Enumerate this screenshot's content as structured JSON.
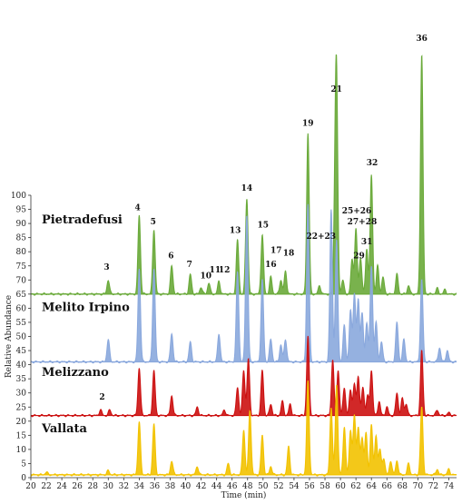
{
  "chart_data": {
    "type": "line",
    "title": "",
    "xlabel": "Time (min)",
    "ylabel": "Relative Abundance",
    "x_ticks": [
      20,
      22,
      24,
      26,
      28,
      30,
      32,
      34,
      36,
      38,
      40,
      42,
      44,
      46,
      48,
      50,
      52,
      54,
      56,
      58,
      60,
      62,
      64,
      66,
      68,
      70,
      72,
      74
    ],
    "y_ticks": [
      0,
      5,
      10,
      15,
      20,
      25,
      30,
      35,
      40,
      45,
      50,
      55,
      60,
      65,
      70,
      75,
      80,
      85,
      90,
      95,
      100
    ],
    "xlim": [
      20,
      75
    ],
    "ylim": [
      0,
      100
    ],
    "series": [
      {
        "name": "Pietradefusi",
        "color": "#6aaa3a",
        "baseline": 65,
        "peaks": [
          [
            30.0,
            70
          ],
          [
            34.0,
            93
          ],
          [
            35.9,
            88
          ],
          [
            38.2,
            75
          ],
          [
            40.6,
            72
          ],
          [
            42.0,
            67.5
          ],
          [
            43.0,
            69
          ],
          [
            44.3,
            69.5
          ],
          [
            46.7,
            84
          ],
          [
            47.9,
            99
          ],
          [
            49.9,
            86
          ],
          [
            51.0,
            71
          ],
          [
            52.3,
            70
          ],
          [
            52.9,
            73
          ],
          [
            55.8,
            122
          ],
          [
            57.3,
            68
          ],
          [
            59.3,
            95
          ],
          [
            59.5,
            134
          ],
          [
            60.3,
            70
          ],
          [
            61.5,
            77
          ],
          [
            62.0,
            88
          ],
          [
            62.6,
            78
          ],
          [
            63.4,
            81
          ],
          [
            64.0,
            107
          ],
          [
            64.8,
            75
          ],
          [
            65.5,
            71
          ],
          [
            67.3,
            72
          ],
          [
            68.8,
            68
          ],
          [
            70.5,
            150
          ],
          [
            72.5,
            67
          ],
          [
            73.5,
            66.5
          ]
        ]
      },
      {
        "name": "Melito Irpino",
        "color": "#8aa8dd",
        "baseline": 41,
        "peaks": [
          [
            30.0,
            49
          ],
          [
            34.0,
            74
          ],
          [
            35.9,
            74
          ],
          [
            38.2,
            51
          ],
          [
            40.6,
            48
          ],
          [
            44.3,
            51
          ],
          [
            46.7,
            73
          ],
          [
            47.9,
            93
          ],
          [
            49.9,
            70
          ],
          [
            51.0,
            49
          ],
          [
            52.3,
            47
          ],
          [
            52.9,
            49
          ],
          [
            55.8,
            97
          ],
          [
            58.8,
            95
          ],
          [
            59.5,
            84
          ],
          [
            60.5,
            54
          ],
          [
            61.3,
            59
          ],
          [
            61.8,
            65
          ],
          [
            62.3,
            63
          ],
          [
            62.8,
            58
          ],
          [
            63.4,
            55
          ],
          [
            64.0,
            75
          ],
          [
            64.6,
            55
          ],
          [
            65.3,
            48
          ],
          [
            67.3,
            55
          ],
          [
            68.2,
            49
          ],
          [
            70.5,
            70
          ],
          [
            72.8,
            46
          ],
          [
            73.8,
            45
          ]
        ]
      },
      {
        "name": "Melizzano",
        "color": "#cc1111",
        "baseline": 22,
        "peaks": [
          [
            29.0,
            24
          ],
          [
            30.2,
            24
          ],
          [
            34.0,
            39
          ],
          [
            35.9,
            38
          ],
          [
            38.2,
            29
          ],
          [
            41.5,
            25
          ],
          [
            45.0,
            24
          ],
          [
            46.7,
            32
          ],
          [
            47.5,
            38
          ],
          [
            48.1,
            42
          ],
          [
            49.9,
            38
          ],
          [
            51.0,
            26
          ],
          [
            52.5,
            27
          ],
          [
            53.5,
            26
          ],
          [
            55.8,
            50
          ],
          [
            59.0,
            42
          ],
          [
            59.7,
            38
          ],
          [
            60.5,
            32
          ],
          [
            61.3,
            31
          ],
          [
            61.8,
            33
          ],
          [
            62.3,
            36
          ],
          [
            62.9,
            32
          ],
          [
            63.5,
            29
          ],
          [
            64.0,
            38
          ],
          [
            65.0,
            27
          ],
          [
            66.0,
            25
          ],
          [
            67.3,
            30
          ],
          [
            68.0,
            28
          ],
          [
            68.5,
            26
          ],
          [
            70.5,
            45
          ],
          [
            72.5,
            24
          ],
          [
            74.0,
            23
          ]
        ]
      },
      {
        "name": "Vallata",
        "color": "#f2c200",
        "baseline": 1,
        "peaks": [
          [
            22.0,
            2
          ],
          [
            30.0,
            2.5
          ],
          [
            34.0,
            20
          ],
          [
            35.9,
            19
          ],
          [
            38.2,
            6
          ],
          [
            41.5,
            4
          ],
          [
            45.5,
            5
          ],
          [
            47.5,
            17
          ],
          [
            48.3,
            24
          ],
          [
            49.9,
            15
          ],
          [
            51.0,
            4
          ],
          [
            53.3,
            11
          ],
          [
            55.8,
            34
          ],
          [
            58.8,
            25
          ],
          [
            59.5,
            33
          ],
          [
            60.5,
            18
          ],
          [
            61.3,
            17
          ],
          [
            61.8,
            22
          ],
          [
            62.3,
            18
          ],
          [
            62.8,
            14
          ],
          [
            63.3,
            16
          ],
          [
            64.0,
            19
          ],
          [
            64.6,
            15
          ],
          [
            65.1,
            10
          ],
          [
            65.6,
            7
          ],
          [
            66.5,
            6
          ],
          [
            67.3,
            6
          ],
          [
            68.8,
            5
          ],
          [
            70.5,
            25
          ],
          [
            72.5,
            3
          ],
          [
            74.0,
            3
          ]
        ]
      }
    ],
    "peak_labels": [
      {
        "text": "2",
        "x": 29.2,
        "y": 27
      },
      {
        "text": "3",
        "x": 29.8,
        "y": 73
      },
      {
        "text": "4",
        "x": 33.8,
        "y": 94
      },
      {
        "text": "5",
        "x": 35.8,
        "y": 89
      },
      {
        "text": "6",
        "x": 38.1,
        "y": 77
      },
      {
        "text": "7",
        "x": 40.5,
        "y": 74
      },
      {
        "text": "10",
        "x": 42.6,
        "y": 70
      },
      {
        "text": "11",
        "x": 43.8,
        "y": 72
      },
      {
        "text": "12",
        "x": 45.0,
        "y": 72
      },
      {
        "text": "13",
        "x": 46.4,
        "y": 86
      },
      {
        "text": "14",
        "x": 47.9,
        "y": 101
      },
      {
        "text": "15",
        "x": 50.0,
        "y": 88
      },
      {
        "text": "16",
        "x": 51.0,
        "y": 74
      },
      {
        "text": "17",
        "x": 51.7,
        "y": 79
      },
      {
        "text": "18",
        "x": 53.3,
        "y": 78
      },
      {
        "text": "19",
        "x": 55.8,
        "y": 124
      },
      {
        "text": "21",
        "x": 59.5,
        "y": 136
      },
      {
        "text": "22+23",
        "x": 57.5,
        "y": 84
      },
      {
        "text": "25+26",
        "x": 62.1,
        "y": 93
      },
      {
        "text": "27+28",
        "x": 62.8,
        "y": 89
      },
      {
        "text": "29",
        "x": 62.4,
        "y": 77
      },
      {
        "text": "31",
        "x": 63.4,
        "y": 82
      },
      {
        "text": "32",
        "x": 64.1,
        "y": 110
      },
      {
        "text": "36",
        "x": 70.5,
        "y": 154
      }
    ],
    "sample_labels": [
      {
        "text": "Pietradefusi",
        "x": 21.4,
        "y": 90
      },
      {
        "text": "Melito Irpino",
        "x": 21.4,
        "y": 59
      },
      {
        "text": "Melizzano",
        "x": 21.4,
        "y": 36
      },
      {
        "text": "Vallata",
        "x": 21.4,
        "y": 16
      }
    ],
    "grid": false
  }
}
